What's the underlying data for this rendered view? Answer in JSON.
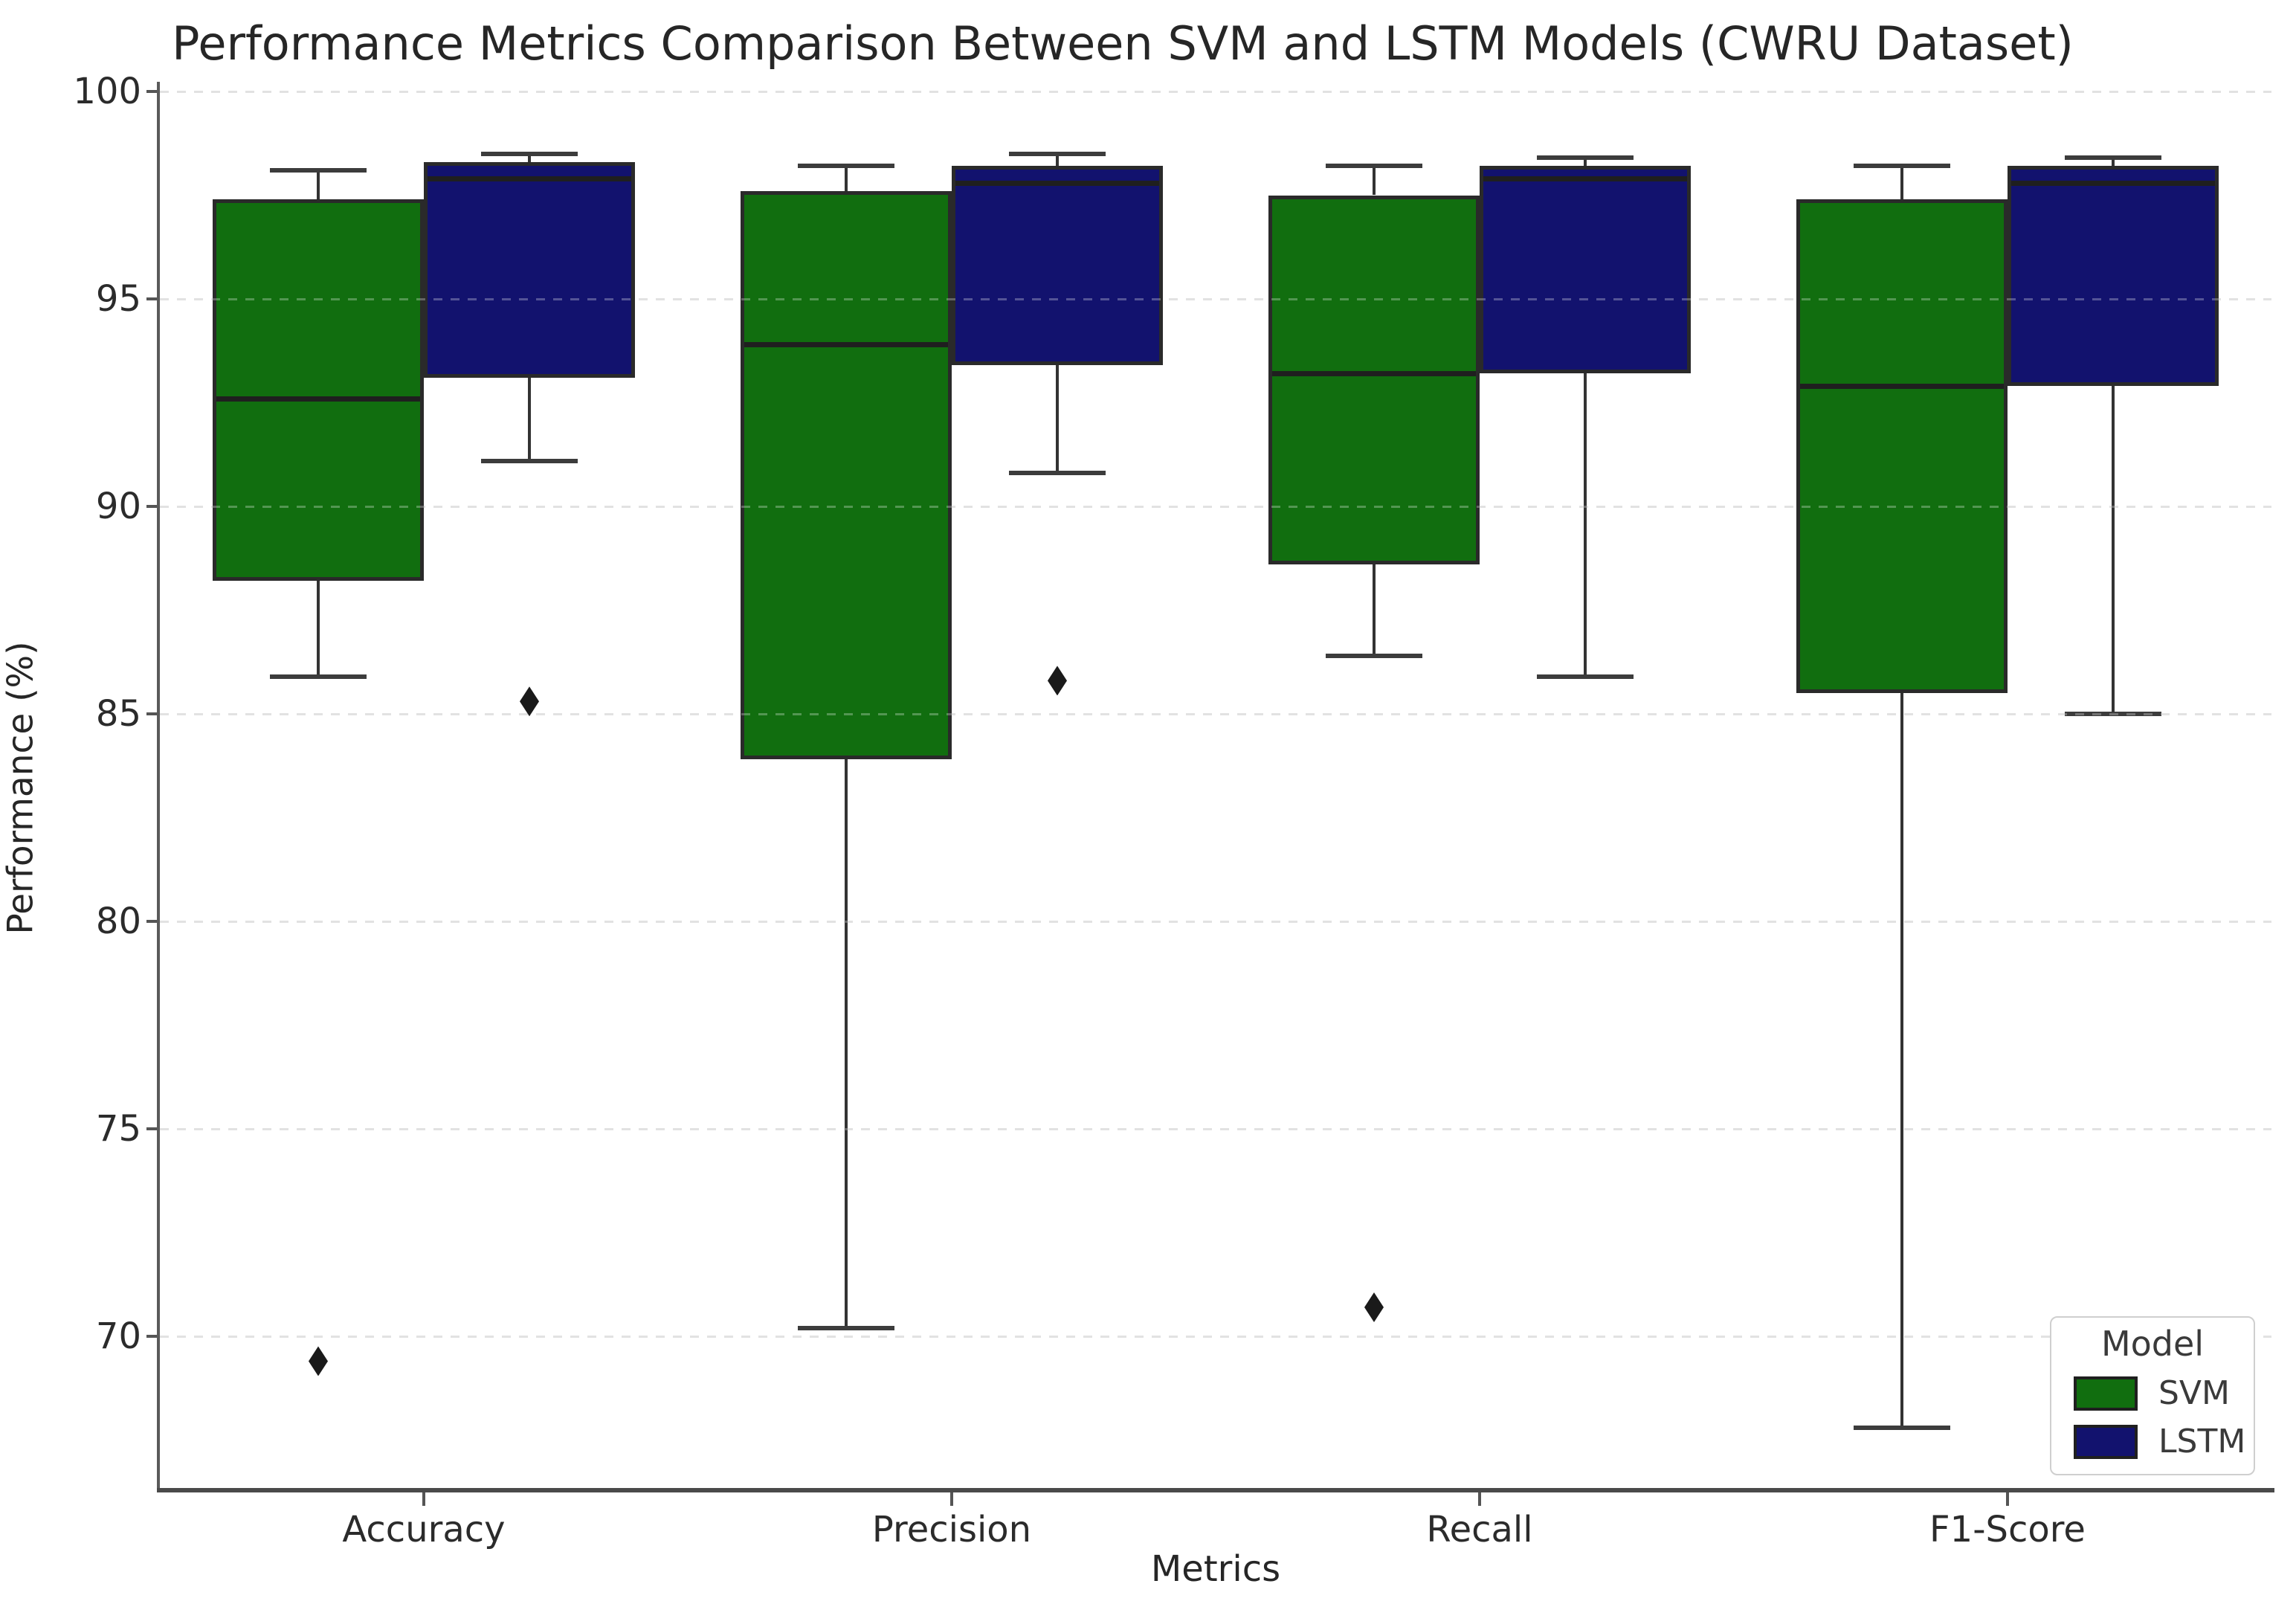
{
  "chart_data": {
    "type": "boxplot",
    "title": "Performance Metrics Comparison Between SVM and LSTM Models (CWRU Dataset)",
    "xlabel": "Metrics",
    "ylabel": "Performance (%)",
    "categories": [
      "Accuracy",
      "Precision",
      "Recall",
      "F1-Score"
    ],
    "y_ticks": [
      70,
      75,
      80,
      85,
      90,
      95,
      100
    ],
    "ylim": [
      66.3,
      100.5
    ],
    "grid": "horizontal-dashed",
    "legend": {
      "title": "Model",
      "position": "lower-right",
      "entries": [
        {
          "label": "SVM",
          "color": "#116e0f"
        },
        {
          "label": "LSTM",
          "color": "#12126e"
        }
      ]
    },
    "series": [
      {
        "name": "SVM",
        "color": "#116e0f",
        "boxes": [
          {
            "category": "Accuracy",
            "whisker_low": 85.9,
            "q1": 88.2,
            "median": 92.6,
            "q3": 97.4,
            "whisker_high": 98.1,
            "outliers": [
              69.4
            ]
          },
          {
            "category": "Precision",
            "whisker_low": 70.2,
            "q1": 83.9,
            "median": 93.9,
            "q3": 97.6,
            "whisker_high": 98.2,
            "outliers": []
          },
          {
            "category": "Recall",
            "whisker_low": 86.4,
            "q1": 88.6,
            "median": 93.2,
            "q3": 97.5,
            "whisker_high": 98.2,
            "outliers": [
              70.7
            ]
          },
          {
            "category": "F1-Score",
            "whisker_low": 67.8,
            "q1": 85.5,
            "median": 92.9,
            "q3": 97.4,
            "whisker_high": 98.2,
            "outliers": []
          }
        ]
      },
      {
        "name": "LSTM",
        "color": "#12126e",
        "boxes": [
          {
            "category": "Accuracy",
            "whisker_low": 91.1,
            "q1": 93.1,
            "median": 97.9,
            "q3": 98.3,
            "whisker_high": 98.5,
            "outliers": [
              85.3
            ]
          },
          {
            "category": "Precision",
            "whisker_low": 90.8,
            "q1": 93.4,
            "median": 97.8,
            "q3": 98.2,
            "whisker_high": 98.5,
            "outliers": [
              85.8
            ]
          },
          {
            "category": "Recall",
            "whisker_low": 85.9,
            "q1": 93.2,
            "median": 97.9,
            "q3": 98.2,
            "whisker_high": 98.4,
            "outliers": []
          },
          {
            "category": "F1-Score",
            "whisker_low": 85.0,
            "q1": 92.9,
            "median": 97.8,
            "q3": 98.2,
            "whisker_high": 98.4,
            "outliers": []
          }
        ]
      }
    ]
  }
}
